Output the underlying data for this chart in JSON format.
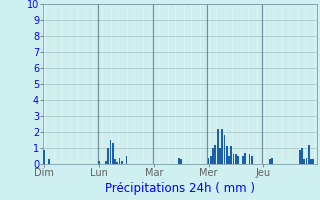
{
  "title": "Précipitations 24h ( mm )",
  "background_color": "#cff0f0",
  "plot_bg_color": "#d8f4f4",
  "bar_color": "#1a5fa8",
  "grid_color_minor": "#b8d8d8",
  "grid_color_major": "#a0c0c0",
  "day_line_color": "#7090a0",
  "ylim": [
    0,
    10
  ],
  "yticks": [
    0,
    1,
    2,
    3,
    4,
    5,
    6,
    7,
    8,
    9,
    10
  ],
  "days": [
    "Dim",
    "Lun",
    "Mar",
    "Mer",
    "Jeu"
  ],
  "n_bars": 120,
  "bars_per_day": 24,
  "bar_values": [
    0.9,
    0.0,
    0.3,
    0.0,
    0.0,
    0.0,
    0.0,
    0.0,
    0.0,
    0.0,
    0.0,
    0.0,
    0.0,
    0.0,
    0.0,
    0.0,
    0.0,
    0.0,
    0.0,
    0.0,
    0.0,
    0.0,
    0.0,
    0.0,
    0.2,
    0.0,
    0.0,
    0.2,
    1.0,
    1.5,
    1.3,
    0.3,
    0.1,
    0.4,
    0.2,
    0.0,
    0.5,
    0.0,
    0.0,
    0.0,
    0.0,
    0.0,
    0.0,
    0.0,
    0.0,
    0.0,
    0.0,
    0.0,
    0.0,
    0.0,
    0.0,
    0.0,
    0.0,
    0.0,
    0.0,
    0.0,
    0.0,
    0.0,
    0.0,
    0.4,
    0.3,
    0.0,
    0.0,
    0.0,
    0.0,
    0.0,
    0.0,
    0.0,
    0.0,
    0.0,
    0.0,
    0.0,
    0.4,
    0.5,
    1.0,
    1.2,
    2.2,
    1.0,
    2.2,
    1.8,
    1.1,
    0.5,
    1.1,
    0.6,
    0.6,
    0.5,
    0.0,
    0.5,
    0.7,
    0.0,
    0.6,
    0.5,
    0.0,
    0.0,
    0.0,
    0.0,
    0.0,
    0.0,
    0.0,
    0.3,
    0.4,
    0.0,
    0.0,
    0.0,
    0.0,
    0.0,
    0.0,
    0.0,
    0.0,
    0.0,
    0.0,
    0.0,
    0.9,
    1.0,
    0.3,
    0.4,
    1.2,
    0.3,
    0.3,
    0.0
  ],
  "tick_fontsize": 7,
  "xlabel_fontsize": 8.5
}
